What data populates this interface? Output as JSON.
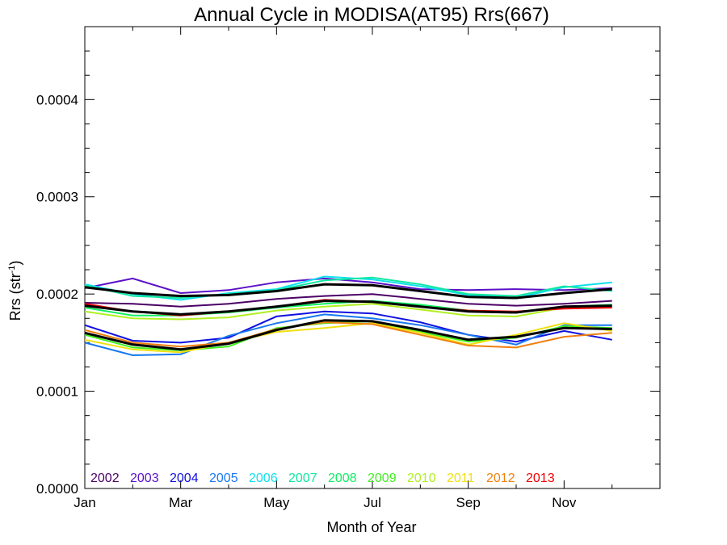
{
  "chart_data": {
    "type": "line",
    "title": "Annual Cycle in MODISA(AT95) Rrs(667)",
    "xlabel": "Month of Year",
    "ylabel_base": "Rrs (str",
    "ylabel_sup": "-1",
    "ylabel_close": ")",
    "xlim": [
      1,
      13
    ],
    "ylim": [
      0.0,
      0.000475
    ],
    "x_ticks": [
      {
        "value": 1,
        "label": "Jan"
      },
      {
        "value": 3,
        "label": "Mar"
      },
      {
        "value": 5,
        "label": "May"
      },
      {
        "value": 7,
        "label": "Jul"
      },
      {
        "value": 9,
        "label": "Sep"
      },
      {
        "value": 11,
        "label": "Nov"
      }
    ],
    "y_ticks": [
      {
        "value": 0.0,
        "label": "0.0000"
      },
      {
        "value": 0.0001,
        "label": "0.0001"
      },
      {
        "value": 0.0002,
        "label": "0.0002"
      },
      {
        "value": 0.0003,
        "label": "0.0003"
      },
      {
        "value": 0.0004,
        "label": "0.0004"
      }
    ],
    "x": [
      1,
      2,
      3,
      4,
      5,
      6,
      7,
      8,
      9,
      10,
      11,
      12
    ],
    "legend_position": "bottom-left",
    "series": [
      {
        "name": "2002",
        "color": "#4b0066",
        "values": [
          0.000191,
          0.00019,
          0.000187,
          0.00019,
          0.000195,
          0.000198,
          0.0002,
          0.000195,
          0.00019,
          0.000188,
          0.00019,
          0.000193
        ]
      },
      {
        "name": "2003",
        "color": "#5a10c8",
        "values": [
          0.000206,
          0.000216,
          0.000201,
          0.000204,
          0.000212,
          0.000216,
          0.000212,
          0.000205,
          0.000204,
          0.000205,
          0.000204,
          0.000206
        ]
      },
      {
        "name": "2004",
        "color": "#1010e0",
        "values": [
          0.000168,
          0.000152,
          0.00015,
          0.000155,
          0.000177,
          0.000182,
          0.00018,
          0.000171,
          0.000158,
          0.000151,
          0.000162,
          0.000153
        ]
      },
      {
        "name": "2005",
        "color": "#1878f0",
        "values": [
          0.00015,
          0.000137,
          0.000138,
          0.000157,
          0.00017,
          0.000179,
          0.000175,
          0.000168,
          0.000158,
          0.000148,
          0.000168,
          0.000168
        ]
      },
      {
        "name": "2006",
        "color": "#10e0f0",
        "values": [
          0.00021,
          0.0002,
          0.000194,
          0.000201,
          0.000205,
          0.000218,
          0.000215,
          0.000208,
          0.000199,
          0.000196,
          0.000207,
          0.000212
        ]
      },
      {
        "name": "2007",
        "color": "#10e8a0",
        "values": [
          0.000209,
          0.000198,
          0.000196,
          0.0002,
          0.000204,
          0.000214,
          0.000217,
          0.00021,
          0.0002,
          0.000198,
          0.000208,
          0.000203
        ]
      },
      {
        "name": "2008",
        "color": "#10f060",
        "values": [
          0.000186,
          0.000178,
          0.000178,
          0.000181,
          0.000186,
          0.00019,
          0.000193,
          0.000189,
          0.000183,
          0.000181,
          0.000187,
          0.000189
        ]
      },
      {
        "name": "2009",
        "color": "#40f020",
        "values": [
          0.000158,
          0.000145,
          0.000142,
          0.000146,
          0.000165,
          0.00017,
          0.000172,
          0.000161,
          0.000151,
          0.000155,
          0.000167,
          0.000165
        ]
      },
      {
        "name": "2010",
        "color": "#b0f020",
        "values": [
          0.000182,
          0.000175,
          0.000174,
          0.000176,
          0.000183,
          0.000187,
          0.00019,
          0.000184,
          0.000178,
          0.000177,
          0.000186,
          0.000187
        ]
      },
      {
        "name": "2011",
        "color": "#f0e010",
        "values": [
          0.000153,
          0.000143,
          0.00014,
          0.00015,
          0.000161,
          0.000165,
          0.00017,
          0.00016,
          0.000148,
          0.000158,
          0.00017,
          0.000162
        ]
      },
      {
        "name": "2012",
        "color": "#f08010",
        "values": [
          0.000163,
          0.00015,
          0.000146,
          0.00015,
          0.000164,
          0.000171,
          0.000169,
          0.000158,
          0.000147,
          0.000145,
          0.000156,
          0.00016
        ]
      },
      {
        "name": "2013",
        "color": "#f00000",
        "values": [
          0.00019,
          0.000182,
          0.000178,
          0.000182,
          0.000187,
          0.000194,
          0.000192,
          0.000187,
          0.000183,
          0.000182,
          0.000185,
          0.000186
        ]
      }
    ],
    "mean_lines": [
      {
        "color": "#000000",
        "values": [
          0.000207,
          0.000201,
          0.000198,
          0.000199,
          0.000203,
          0.00021,
          0.000209,
          0.000203,
          0.000197,
          0.000196,
          0.000201,
          0.000205
        ]
      },
      {
        "color": "#000000",
        "values": [
          0.000188,
          0.000182,
          0.000179,
          0.000182,
          0.000187,
          0.000193,
          0.000192,
          0.000187,
          0.000182,
          0.000181,
          0.000187,
          0.000188
        ]
      },
      {
        "color": "#000000",
        "values": [
          0.00016,
          0.000148,
          0.000143,
          0.000149,
          0.000163,
          0.000173,
          0.000172,
          0.000163,
          0.000153,
          0.000156,
          0.000165,
          0.000164
        ]
      }
    ]
  }
}
